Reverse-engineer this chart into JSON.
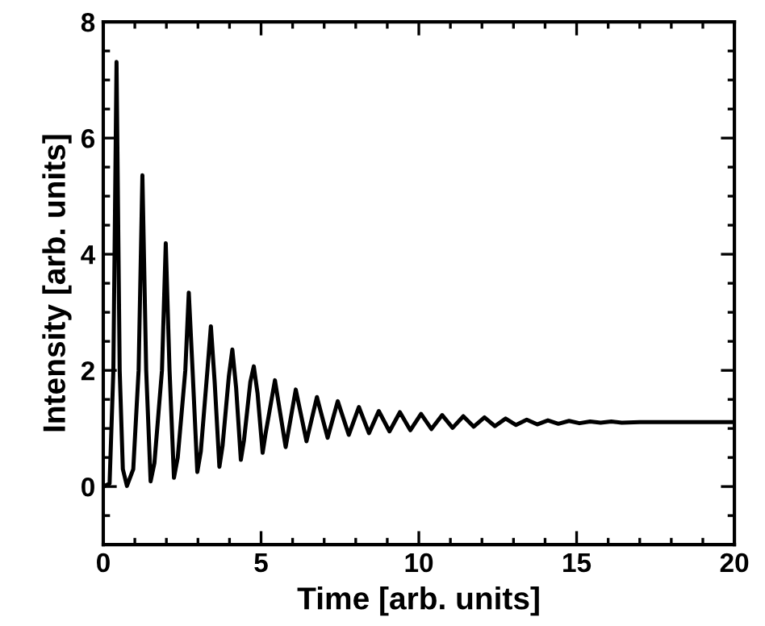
{
  "chart_data": {
    "type": "line",
    "xlabel": "Time [arb. units]",
    "ylabel": "Intensity [arb. units]",
    "xlim": [
      0,
      20
    ],
    "ylim": [
      -1,
      8
    ],
    "xticks": [
      0,
      5,
      10,
      15,
      20
    ],
    "yticks": [
      0,
      2,
      4,
      6,
      8
    ],
    "grid": false,
    "legend": false,
    "marker": "none",
    "line_style": "solid",
    "series": [
      {
        "color": "#000000",
        "x": [
          0,
          0.2,
          0.32,
          0.42,
          0.52,
          0.62,
          0.75,
          0.95,
          1.12,
          1.24,
          1.36,
          1.5,
          1.62,
          1.86,
          1.98,
          2.1,
          2.24,
          2.36,
          2.6,
          2.71,
          2.83,
          2.98,
          3.09,
          3.3,
          3.41,
          3.53,
          3.68,
          3.78,
          3.98,
          4.09,
          4.21,
          4.36,
          4.46,
          4.66,
          4.77,
          4.89,
          5.05,
          5.14,
          5.44,
          5.78,
          6.1,
          6.44,
          6.77,
          7.11,
          7.43,
          7.78,
          8.1,
          8.42,
          8.73,
          9.07,
          9.4,
          9.73,
          10.07,
          10.4,
          10.74,
          11.07,
          11.41,
          11.74,
          12.08,
          12.41,
          12.75,
          13.08,
          13.42,
          13.75,
          14.09,
          14.42,
          14.76,
          15.09,
          15.43,
          15.76,
          16.1,
          16.43,
          17.0,
          20.0
        ],
        "values": [
          0.0,
          0.05,
          2.0,
          7.31,
          2.0,
          0.3,
          0.01,
          0.3,
          2.0,
          5.36,
          2.0,
          0.09,
          0.4,
          2.0,
          4.19,
          2.0,
          0.15,
          0.5,
          2.0,
          3.34,
          2.0,
          0.25,
          0.6,
          2.0,
          2.76,
          1.8,
          0.34,
          0.7,
          1.9,
          2.36,
          1.7,
          0.46,
          0.8,
          1.8,
          2.07,
          1.6,
          0.58,
          0.9,
          1.83,
          0.68,
          1.67,
          0.78,
          1.54,
          0.84,
          1.47,
          0.89,
          1.37,
          0.92,
          1.3,
          0.95,
          1.28,
          0.97,
          1.25,
          0.99,
          1.23,
          1.01,
          1.21,
          1.03,
          1.19,
          1.04,
          1.17,
          1.06,
          1.15,
          1.07,
          1.14,
          1.08,
          1.13,
          1.09,
          1.12,
          1.1,
          1.12,
          1.1,
          1.11,
          1.11
        ]
      }
    ]
  }
}
